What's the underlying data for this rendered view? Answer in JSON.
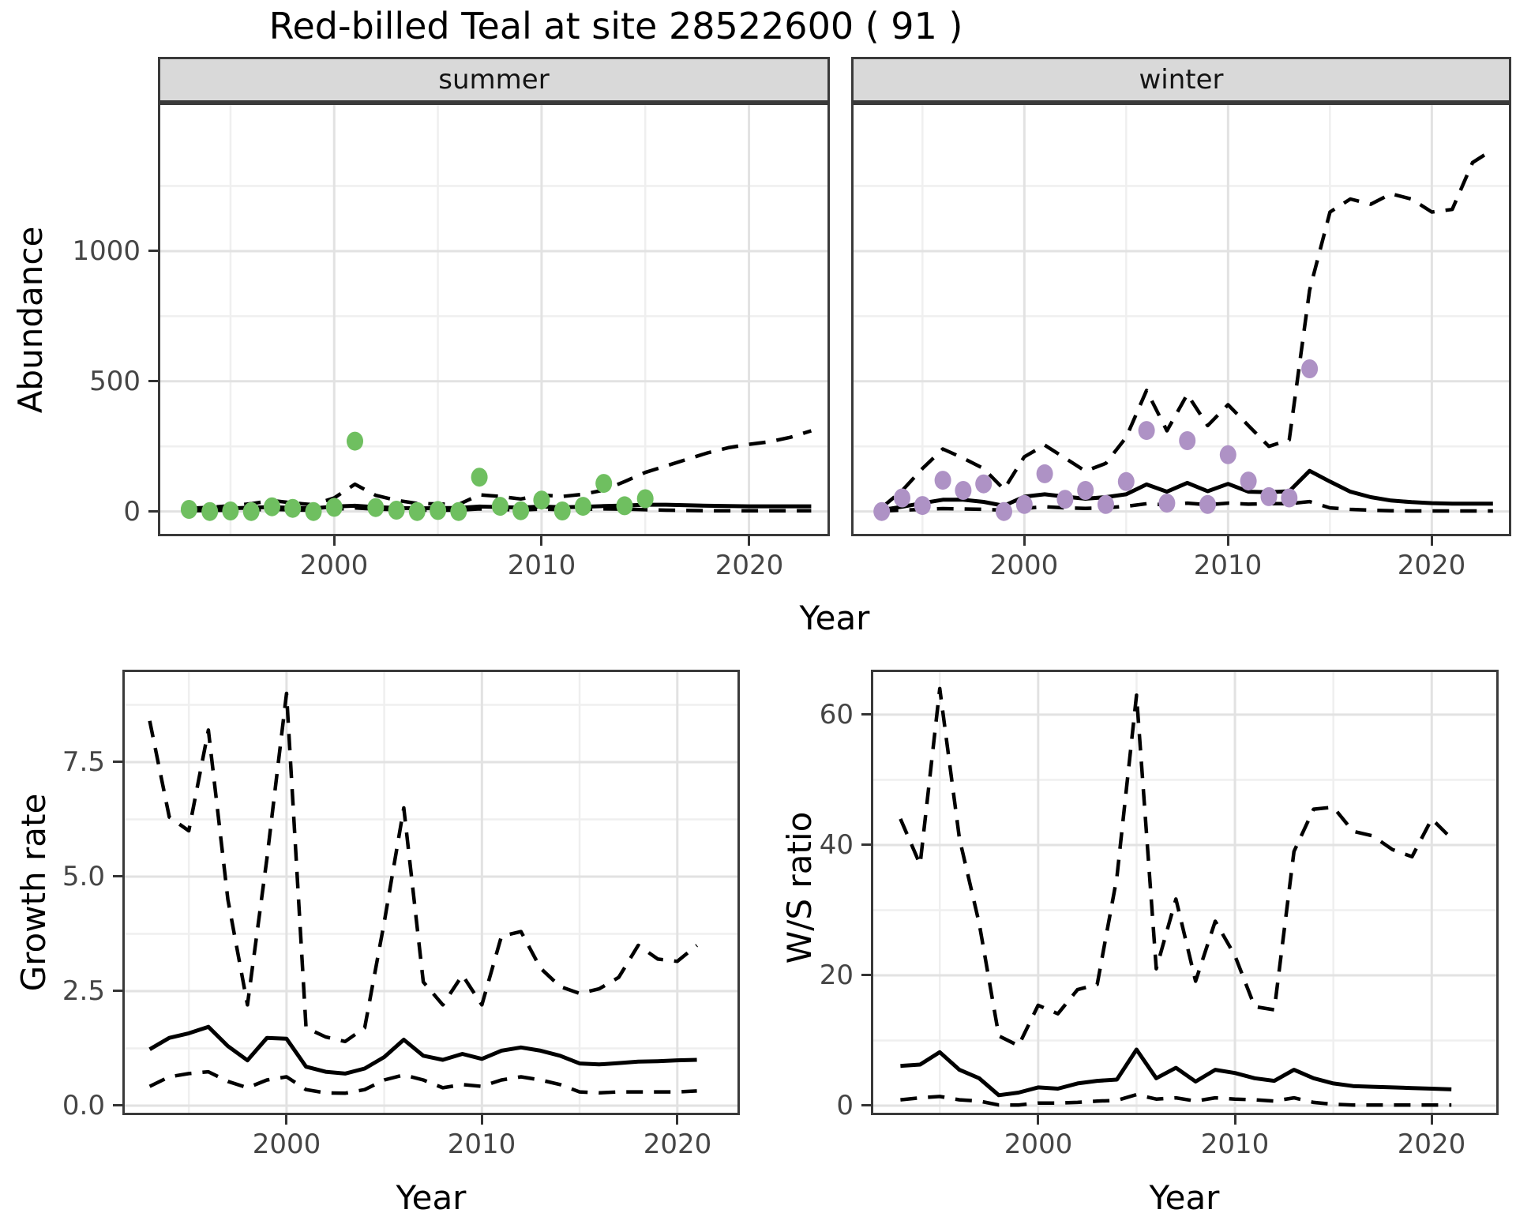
{
  "page_title": "Red-billed Teal at site 28522600 ( 91 )",
  "labels": {
    "abundance": "Abundance",
    "year": "Year",
    "growth_rate": "Growth rate",
    "ws_ratio": "W/S ratio"
  },
  "colors": {
    "summer_point": "#6fbf60",
    "winter_point": "#ae92c5",
    "line": "#000000",
    "strip_bg": "#d9d9d9",
    "panel_border": "#3a3a3a",
    "grid_major": "#e2e2e2",
    "grid_minor": "#efefef",
    "axis_text": "#454545"
  },
  "chart_data": [
    {
      "id": "abundance-summer",
      "type": "line",
      "facet_label": "summer",
      "xlabel": "Year",
      "ylabel": "Abundance",
      "xlim": [
        1991.5,
        2023.9
      ],
      "ylim": [
        -95,
        1570
      ],
      "xticks": [
        2000,
        2010,
        2020
      ],
      "xtick_labels": [
        "2000",
        "2010",
        "2020"
      ],
      "xticks_minor": [
        1995,
        2005,
        2015
      ],
      "yticks": [
        0,
        500,
        1000
      ],
      "ytick_labels": [
        "0",
        "500",
        "1000"
      ],
      "yticks_minor": [
        250,
        750,
        1250
      ],
      "years": [
        1993,
        1994,
        1995,
        1996,
        1997,
        1998,
        1999,
        2000,
        2001,
        2002,
        2003,
        2004,
        2005,
        2006,
        2007,
        2008,
        2009,
        2010,
        2011,
        2012,
        2013,
        2014,
        2015,
        2016,
        2017,
        2018,
        2019,
        2020,
        2021,
        2022,
        2023
      ],
      "series": [
        {
          "name": "lower 95% CI",
          "style": "dashed",
          "values": [
            3,
            4,
            5,
            6,
            8,
            6,
            5,
            8,
            14,
            9,
            7,
            5,
            5,
            5,
            10,
            8,
            6,
            9,
            7,
            8,
            10,
            9,
            7,
            5,
            4,
            3,
            3,
            3,
            3,
            3,
            3
          ]
        },
        {
          "name": "model fit",
          "style": "solid",
          "values": [
            8,
            10,
            12,
            15,
            17,
            14,
            12,
            19,
            22,
            17,
            14,
            12,
            13,
            14,
            19,
            17,
            15,
            19,
            16,
            18,
            21,
            23,
            26,
            26,
            24,
            22,
            21,
            20,
            20,
            20,
            20
          ]
        },
        {
          "name": "upper 95% CI",
          "style": "dashed",
          "values": [
            12,
            16,
            22,
            30,
            42,
            33,
            26,
            52,
            105,
            62,
            43,
            31,
            29,
            27,
            64,
            58,
            48,
            63,
            58,
            66,
            82,
            115,
            150,
            175,
            200,
            225,
            245,
            258,
            268,
            285,
            310
          ]
        }
      ],
      "points": {
        "name": "observed summer counts",
        "color": "#6fbf60",
        "years": [
          1993,
          1994,
          1995,
          1996,
          1997,
          1998,
          1999,
          2000,
          2001,
          2002,
          2003,
          2004,
          2005,
          2006,
          2007,
          2008,
          2009,
          2010,
          2011,
          2012,
          2013,
          2014,
          2015
        ],
        "values": [
          8,
          0,
          2,
          0,
          18,
          12,
          0,
          16,
          270,
          15,
          5,
          0,
          4,
          0,
          132,
          20,
          3,
          44,
          2,
          20,
          108,
          22,
          49
        ]
      }
    },
    {
      "id": "abundance-winter",
      "type": "line",
      "facet_label": "winter",
      "xlabel": "Year",
      "ylabel": "Abundance",
      "xlim": [
        1991.5,
        2023.9
      ],
      "ylim": [
        -95,
        1570
      ],
      "xticks": [
        2000,
        2010,
        2020
      ],
      "xtick_labels": [
        "2000",
        "2010",
        "2020"
      ],
      "xticks_minor": [
        1995,
        2005,
        2015
      ],
      "yticks": [
        0,
        500,
        1000
      ],
      "ytick_labels": [
        "0",
        "500",
        "1000"
      ],
      "yticks_minor": [
        250,
        750,
        1250
      ],
      "years": [
        1993,
        1994,
        1995,
        1996,
        1997,
        1998,
        1999,
        2000,
        2001,
        2002,
        2003,
        2004,
        2005,
        2006,
        2007,
        2008,
        2009,
        2010,
        2011,
        2012,
        2013,
        2014,
        2015,
        2016,
        2017,
        2018,
        2019,
        2020,
        2021,
        2022,
        2023
      ],
      "series": [
        {
          "name": "lower 95% CI",
          "style": "dashed",
          "values": [
            2,
            5,
            8,
            11,
            10,
            8,
            5,
            12,
            18,
            14,
            12,
            14,
            20,
            30,
            25,
            32,
            26,
            32,
            28,
            30,
            30,
            38,
            14,
            8,
            5,
            3,
            2,
            2,
            2,
            2,
            2
          ]
        },
        {
          "name": "model fit",
          "style": "solid",
          "values": [
            6,
            18,
            32,
            45,
            45,
            37,
            22,
            57,
            66,
            57,
            49,
            55,
            66,
            104,
            76,
            110,
            78,
            106,
            76,
            74,
            78,
            156,
            115,
            76,
            55,
            42,
            36,
            32,
            30,
            30,
            30
          ]
        },
        {
          "name": "upper 95% CI",
          "style": "dashed",
          "values": [
            15,
            80,
            165,
            240,
            205,
            165,
            85,
            210,
            255,
            205,
            155,
            185,
            285,
            465,
            310,
            450,
            330,
            410,
            330,
            250,
            275,
            850,
            1150,
            1200,
            1180,
            1220,
            1200,
            1150,
            1160,
            1340,
            1390
          ]
        }
      ],
      "points": {
        "name": "observed winter counts",
        "color": "#ae92c5",
        "years": [
          1993,
          1994,
          1995,
          1996,
          1997,
          1998,
          1999,
          2000,
          2001,
          2002,
          2003,
          2004,
          2005,
          2006,
          2007,
          2008,
          2009,
          2010,
          2011,
          2012,
          2013,
          2014
        ],
        "values": [
          0,
          52,
          23,
          120,
          81,
          106,
          0,
          27,
          145,
          47,
          81,
          27,
          115,
          311,
          32,
          272,
          27,
          218,
          117,
          57,
          52,
          548
        ]
      }
    },
    {
      "id": "growth-rate",
      "type": "line",
      "facet_label": "",
      "xlabel": "Year",
      "ylabel": "Growth rate",
      "xlim": [
        1991.6,
        2023.2
      ],
      "ylim": [
        -0.207,
        9.517
      ],
      "xticks": [
        2000,
        2010,
        2020
      ],
      "xtick_labels": [
        "2000",
        "2010",
        "2020"
      ],
      "xticks_minor": [
        1995,
        2005,
        2015
      ],
      "yticks": [
        0,
        2.5,
        5,
        7.5
      ],
      "ytick_labels": [
        "0.0",
        "2.5",
        "5.0",
        "7.5"
      ],
      "yticks_minor": [
        1.25,
        3.75,
        6.25,
        8.75
      ],
      "years": [
        1993,
        1994,
        1995,
        1996,
        1997,
        1998,
        1999,
        2000,
        2001,
        2002,
        2003,
        2004,
        2005,
        2006,
        2007,
        2008,
        2009,
        2010,
        2011,
        2012,
        2013,
        2014,
        2015,
        2016,
        2017,
        2018,
        2019,
        2020,
        2021
      ],
      "series": [
        {
          "name": "lower 95% CI",
          "style": "dashed",
          "values": [
            0.42,
            0.63,
            0.7,
            0.74,
            0.53,
            0.39,
            0.56,
            0.63,
            0.35,
            0.28,
            0.27,
            0.35,
            0.56,
            0.67,
            0.56,
            0.39,
            0.46,
            0.42,
            0.56,
            0.63,
            0.56,
            0.46,
            0.3,
            0.28,
            0.3,
            0.3,
            0.3,
            0.3,
            0.32
          ]
        },
        {
          "name": "model fit",
          "style": "solid",
          "values": [
            1.23,
            1.48,
            1.58,
            1.72,
            1.3,
            0.99,
            1.48,
            1.46,
            0.85,
            0.74,
            0.7,
            0.81,
            1.06,
            1.44,
            1.09,
            1.0,
            1.13,
            1.02,
            1.2,
            1.27,
            1.2,
            1.09,
            0.92,
            0.9,
            0.93,
            0.96,
            0.97,
            0.99,
            1.0
          ]
        },
        {
          "name": "upper 95% CI",
          "style": "dashed",
          "values": [
            8.4,
            6.3,
            6.0,
            8.2,
            4.5,
            2.2,
            5.4,
            9.0,
            1.7,
            1.5,
            1.4,
            1.7,
            4.0,
            6.5,
            2.7,
            2.2,
            2.85,
            2.2,
            3.7,
            3.8,
            3.0,
            2.6,
            2.45,
            2.55,
            2.8,
            3.5,
            3.2,
            3.15,
            3.5
          ]
        }
      ],
      "points": null
    },
    {
      "id": "ws-ratio",
      "type": "line",
      "facet_label": "",
      "xlabel": "Year",
      "ylabel": "W/S ratio",
      "xlim": [
        1991.5,
        2023.4
      ],
      "ylim": [
        -1.455,
        66.9
      ],
      "xticks": [
        2000,
        2010,
        2020
      ],
      "xtick_labels": [
        "2000",
        "2010",
        "2020"
      ],
      "xticks_minor": [
        1995,
        2005,
        2015
      ],
      "yticks": [
        0,
        20,
        40,
        60
      ],
      "ytick_labels": [
        "0",
        "20",
        "40",
        "60"
      ],
      "yticks_minor": [
        10,
        30,
        50
      ],
      "years": [
        1993,
        1994,
        1995,
        1996,
        1997,
        1998,
        1999,
        2000,
        2001,
        2002,
        2003,
        2004,
        2005,
        2006,
        2007,
        2008,
        2009,
        2010,
        2011,
        2012,
        2013,
        2014,
        2015,
        2016,
        2017,
        2018,
        2019,
        2020,
        2021
      ],
      "series": [
        {
          "name": "lower 95% CI",
          "style": "dashed",
          "values": [
            0.9,
            1.2,
            1.4,
            0.9,
            0.7,
            0.1,
            0.1,
            0.4,
            0.4,
            0.5,
            0.7,
            0.8,
            1.7,
            1.0,
            1.2,
            0.7,
            1.2,
            1.0,
            0.9,
            0.7,
            1.2,
            0.5,
            0.2,
            0.1,
            0.1,
            0.1,
            0.1,
            0.1,
            0.1
          ]
        },
        {
          "name": "model fit",
          "style": "solid",
          "values": [
            6.1,
            6.3,
            8.2,
            5.5,
            4.2,
            1.6,
            2.0,
            2.8,
            2.6,
            3.4,
            3.8,
            4.0,
            8.6,
            4.2,
            5.8,
            3.7,
            5.5,
            5.0,
            4.2,
            3.8,
            5.5,
            4.2,
            3.4,
            3.0,
            2.9,
            2.8,
            2.7,
            2.6,
            2.5
          ]
        },
        {
          "name": "upper 95% CI",
          "style": "dashed",
          "values": [
            44,
            37,
            64,
            41,
            28,
            10.7,
            9.2,
            15.4,
            14.1,
            17.8,
            18.6,
            35,
            63,
            21,
            31.7,
            19.1,
            28.3,
            23,
            15.2,
            14.7,
            39,
            45.5,
            45.8,
            42.1,
            41.4,
            39.3,
            38.2,
            44,
            41
          ]
        }
      ],
      "points": null
    }
  ]
}
